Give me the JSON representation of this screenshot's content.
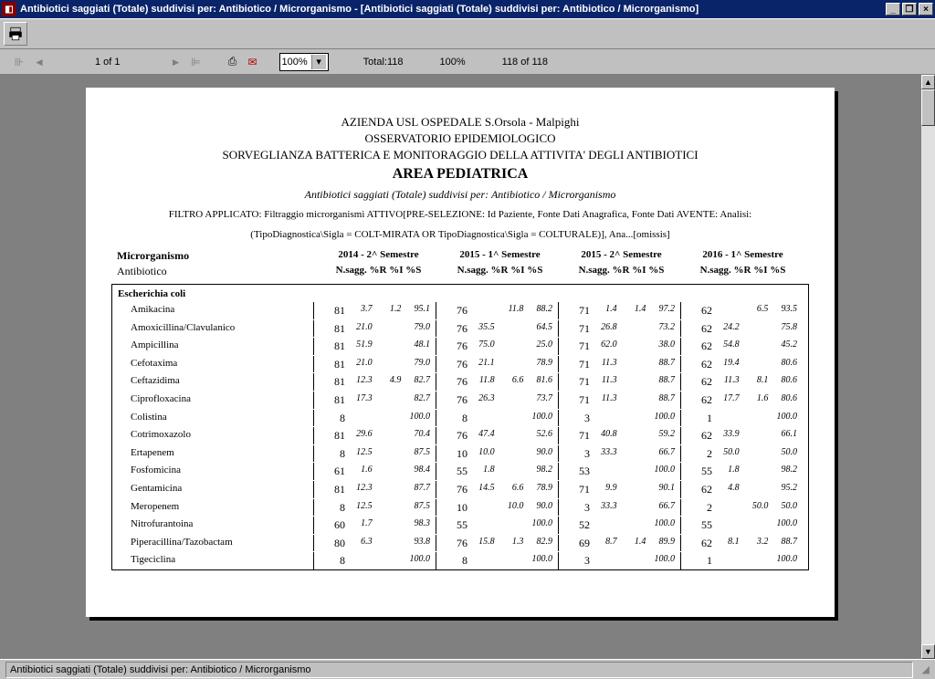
{
  "window": {
    "title": "Antibiotici saggiati (Totale) suddivisi per: Antibiotico  /  Microrganismo - [Antibiotici saggiati (Totale) suddivisi per: Antibiotico  /  Microrganismo]"
  },
  "nav": {
    "page_label": "1 of 1",
    "zoom": "100%",
    "total": "Total:118",
    "pct": "100%",
    "rec": "118 of 118"
  },
  "status": {
    "text": "Antibiotici saggiati (Totale) suddivisi per: Antibiotico  /  Microrganismo"
  },
  "report": {
    "h_line1": "AZIENDA USL OSPEDALE S.Orsola - Malpighi",
    "h_line2": "OSSERVATORIO EPIDEMIOLOGICO",
    "h_line3": "SORVEGLIANZA BATTERICA E MONITORAGGIO DELLA ATTIVITA' DEGLI ANTIBIOTICI",
    "h_area": "AREA PEDIATRICA",
    "subtitle": "Antibiotici saggiati (Totale) suddivisi per: Antibiotico  /  Microrganismo",
    "filter1": "FILTRO APPLICATO: Filtraggio microrganismi ATTIVO[PRE-SELEZIONE: Id Paziente, Fonte Dati Anagrafica, Fonte Dati AVENTE: Analisi:",
    "filter2": "(TipoDiagnostica\\Sigla = COLT-MIRATA OR TipoDiagnostica\\Sigla = COLTURALE)], Ana...[omissis]",
    "row_label1": "Microrganismo",
    "row_label2": "Antibiotico",
    "semesters": [
      "2014 - 2^ Semestre",
      "2015 - 1^ Semestre",
      "2015 - 2^ Semestre",
      "2016 - 1^ Semestre"
    ],
    "subcols": "N.sagg.  %R   %I  %S",
    "organism": "Escherichia coli",
    "rows": [
      {
        "name": "Amikacina",
        "s": [
          [
            "81",
            "3.7",
            "1.2",
            "95.1"
          ],
          [
            "76",
            "",
            "11.8",
            "88.2"
          ],
          [
            "71",
            "1.4",
            "1.4",
            "97.2"
          ],
          [
            "62",
            "",
            "6.5",
            "93.5"
          ]
        ]
      },
      {
        "name": "Amoxicillina/Clavulanico",
        "s": [
          [
            "81",
            "21.0",
            "",
            "79.0"
          ],
          [
            "76",
            "35.5",
            "",
            "64.5"
          ],
          [
            "71",
            "26.8",
            "",
            "73.2"
          ],
          [
            "62",
            "24.2",
            "",
            "75.8"
          ]
        ]
      },
      {
        "name": "Ampicillina",
        "s": [
          [
            "81",
            "51.9",
            "",
            "48.1"
          ],
          [
            "76",
            "75.0",
            "",
            "25.0"
          ],
          [
            "71",
            "62.0",
            "",
            "38.0"
          ],
          [
            "62",
            "54.8",
            "",
            "45.2"
          ]
        ]
      },
      {
        "name": "Cefotaxima",
        "s": [
          [
            "81",
            "21.0",
            "",
            "79.0"
          ],
          [
            "76",
            "21.1",
            "",
            "78.9"
          ],
          [
            "71",
            "11.3",
            "",
            "88.7"
          ],
          [
            "62",
            "19.4",
            "",
            "80.6"
          ]
        ]
      },
      {
        "name": "Ceftazidima",
        "s": [
          [
            "81",
            "12.3",
            "4.9",
            "82.7"
          ],
          [
            "76",
            "11.8",
            "6.6",
            "81.6"
          ],
          [
            "71",
            "11.3",
            "",
            "88.7"
          ],
          [
            "62",
            "11.3",
            "8.1",
            "80.6"
          ]
        ]
      },
      {
        "name": "Ciprofloxacina",
        "s": [
          [
            "81",
            "17.3",
            "",
            "82.7"
          ],
          [
            "76",
            "26.3",
            "",
            "73.7"
          ],
          [
            "71",
            "11.3",
            "",
            "88.7"
          ],
          [
            "62",
            "17.7",
            "1.6",
            "80.6"
          ]
        ]
      },
      {
        "name": "Colistina",
        "s": [
          [
            "8",
            "",
            "",
            "100.0"
          ],
          [
            "8",
            "",
            "",
            "100.0"
          ],
          [
            "3",
            "",
            "",
            "100.0"
          ],
          [
            "1",
            "",
            "",
            "100.0"
          ]
        ]
      },
      {
        "name": "Cotrimoxazolo",
        "s": [
          [
            "81",
            "29.6",
            "",
            "70.4"
          ],
          [
            "76",
            "47.4",
            "",
            "52.6"
          ],
          [
            "71",
            "40.8",
            "",
            "59.2"
          ],
          [
            "62",
            "33.9",
            "",
            "66.1"
          ]
        ]
      },
      {
        "name": "Ertapenem",
        "s": [
          [
            "8",
            "12.5",
            "",
            "87.5"
          ],
          [
            "10",
            "10.0",
            "",
            "90.0"
          ],
          [
            "3",
            "33.3",
            "",
            "66.7"
          ],
          [
            "2",
            "50.0",
            "",
            "50.0"
          ]
        ]
      },
      {
        "name": "Fosfomicina",
        "s": [
          [
            "61",
            "1.6",
            "",
            "98.4"
          ],
          [
            "55",
            "1.8",
            "",
            "98.2"
          ],
          [
            "53",
            "",
            "",
            "100.0"
          ],
          [
            "55",
            "1.8",
            "",
            "98.2"
          ]
        ]
      },
      {
        "name": "Gentamicina",
        "s": [
          [
            "81",
            "12.3",
            "",
            "87.7"
          ],
          [
            "76",
            "14.5",
            "6.6",
            "78.9"
          ],
          [
            "71",
            "9.9",
            "",
            "90.1"
          ],
          [
            "62",
            "4.8",
            "",
            "95.2"
          ]
        ]
      },
      {
        "name": "Meropenem",
        "s": [
          [
            "8",
            "12.5",
            "",
            "87.5"
          ],
          [
            "10",
            "",
            "10.0",
            "90.0"
          ],
          [
            "3",
            "33.3",
            "",
            "66.7"
          ],
          [
            "2",
            "",
            "50.0",
            "50.0"
          ]
        ]
      },
      {
        "name": "Nitrofurantoina",
        "s": [
          [
            "60",
            "1.7",
            "",
            "98.3"
          ],
          [
            "55",
            "",
            "",
            "100.0"
          ],
          [
            "52",
            "",
            "",
            "100.0"
          ],
          [
            "55",
            "",
            "",
            "100.0"
          ]
        ]
      },
      {
        "name": "Piperacillina/Tazobactam",
        "s": [
          [
            "80",
            "6.3",
            "",
            "93.8"
          ],
          [
            "76",
            "15.8",
            "1.3",
            "82.9"
          ],
          [
            "69",
            "8.7",
            "1.4",
            "89.9"
          ],
          [
            "62",
            "8.1",
            "3.2",
            "88.7"
          ]
        ]
      },
      {
        "name": "Tigeciclina",
        "s": [
          [
            "8",
            "",
            "",
            "100.0"
          ],
          [
            "8",
            "",
            "",
            "100.0"
          ],
          [
            "3",
            "",
            "",
            "100.0"
          ],
          [
            "1",
            "",
            "",
            "100.0"
          ]
        ]
      }
    ]
  },
  "style": {
    "titlebar_bg": "#0a246a",
    "chrome_bg": "#c0c0c0",
    "viewport_bg": "#808080",
    "page_bg": "#ffffff",
    "text_color": "#000000"
  }
}
